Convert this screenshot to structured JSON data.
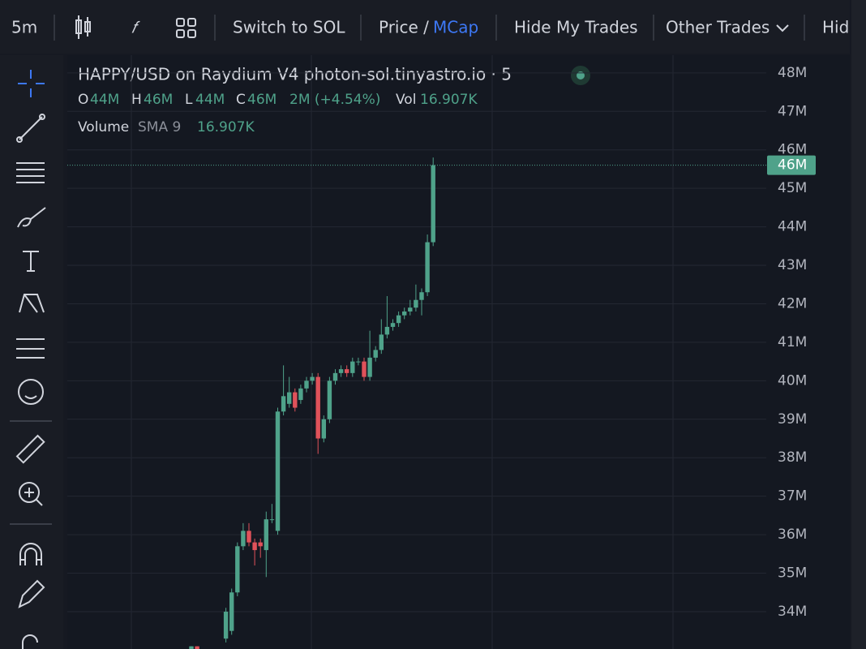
{
  "toolbar": {
    "interval": "5m",
    "switch": "Switch to SOL",
    "price": "Price /",
    "mcap": "MCap",
    "hide_my_trades": "Hide My Trades",
    "other_trades": "Other Trades",
    "hide": "Hide"
  },
  "legend": {
    "title": "HAPPY/USD on Raydium V4 photon-sol.tinyastro.io · 5",
    "o": "O",
    "o_val": "44M",
    "h": "H",
    "h_val": "46M",
    "l": "L",
    "l_val": "44M",
    "c": "C",
    "c_val": "46M",
    "change": "2M (+4.54%)",
    "vol": "Vol",
    "vol_val": "16.907K",
    "volume": "Volume",
    "sma": "SMA 9",
    "sma_val": "16.907K"
  },
  "chart_data": {
    "type": "candlestick",
    "up_color": "#4fa28a",
    "down_color": "#e0525a",
    "open": [
      33.0,
      33.1,
      null,
      null,
      null,
      null,
      33.3,
      33.5,
      34.5,
      35.7,
      36.1,
      35.8,
      35.8,
      35.6,
      36.4,
      36.1,
      39.2,
      39.4,
      39.7,
      39.5,
      39.8,
      40.0,
      40.1,
      38.5,
      39.0,
      40.0,
      40.2,
      40.3,
      40.2,
      40.5,
      40.5,
      40.1,
      40.6,
      40.8,
      41.2,
      41.4,
      41.5,
      41.7,
      41.8,
      41.9,
      42.1,
      42.3,
      43.6
    ],
    "high": [
      33.1,
      33.1,
      null,
      null,
      null,
      null,
      34.1,
      34.6,
      35.8,
      36.3,
      36.3,
      35.9,
      35.9,
      36.6,
      36.8,
      39.3,
      40.4,
      40.1,
      39.8,
      39.9,
      40.1,
      40.2,
      40.2,
      39.1,
      40.1,
      40.3,
      40.4,
      40.4,
      40.6,
      40.6,
      40.6,
      41.3,
      40.9,
      41.6,
      42.2,
      41.6,
      41.8,
      41.9,
      42.1,
      42.5,
      42.4,
      43.8,
      45.8
    ],
    "low": [
      32.9,
      33.0,
      null,
      null,
      null,
      null,
      33.2,
      33.4,
      34.4,
      35.6,
      35.7,
      35.2,
      35.4,
      34.9,
      36.3,
      36.0,
      39.1,
      39.3,
      39.2,
      39.4,
      39.7,
      39.9,
      38.1,
      38.4,
      38.9,
      39.9,
      40.1,
      40.1,
      40.1,
      40.4,
      40.0,
      40.0,
      40.5,
      40.7,
      41.1,
      41.3,
      41.4,
      41.6,
      41.7,
      41.8,
      41.7,
      42.2,
      43.5
    ],
    "close": [
      33.1,
      33.0,
      null,
      null,
      null,
      null,
      34.0,
      34.5,
      35.7,
      36.1,
      35.8,
      35.6,
      35.7,
      36.4,
      36.4,
      39.2,
      39.6,
      39.7,
      39.3,
      39.8,
      40.0,
      40.1,
      38.5,
      39.0,
      40.0,
      40.2,
      40.3,
      40.2,
      40.5,
      40.5,
      40.1,
      40.6,
      40.8,
      41.2,
      41.4,
      41.5,
      41.7,
      41.8,
      41.9,
      42.1,
      42.3,
      43.6,
      45.6
    ],
    "ylim": [
      33.03,
      48.46
    ],
    "yticks": [
      {
        "value": 34,
        "label": "34M"
      },
      {
        "value": 35,
        "label": "35M"
      },
      {
        "value": 36,
        "label": "36M"
      },
      {
        "value": 37,
        "label": "37M"
      },
      {
        "value": 38,
        "label": "38M"
      },
      {
        "value": 39,
        "label": "39M"
      },
      {
        "value": 40,
        "label": "40M"
      },
      {
        "value": 41,
        "label": "41M"
      },
      {
        "value": 42,
        "label": "42M"
      },
      {
        "value": 43,
        "label": "43M"
      },
      {
        "value": 44,
        "label": "44M"
      },
      {
        "value": 45,
        "label": "45M"
      },
      {
        "value": 46,
        "label": "46M"
      },
      {
        "value": 47,
        "label": "47M"
      },
      {
        "value": 48,
        "label": "48M"
      }
    ],
    "grid": true,
    "last_price": {
      "value": 45.6,
      "label": "46M"
    }
  }
}
